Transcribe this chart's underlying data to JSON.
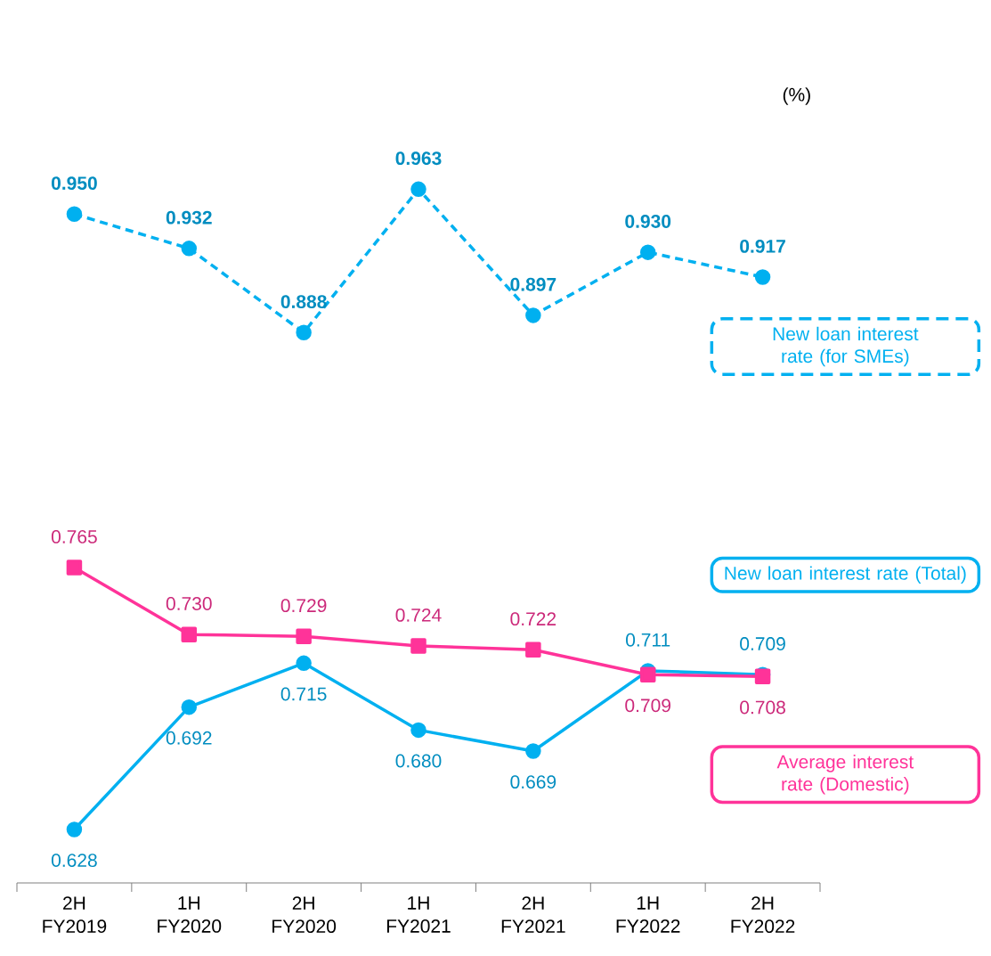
{
  "chart_data": {
    "type": "line",
    "ylabel": "(%)",
    "categories": [
      "2H FY2019",
      "1H FY2020",
      "2H FY2020",
      "1H FY2021",
      "2H FY2021",
      "1H FY2022",
      "2H FY2022"
    ],
    "series": [
      {
        "name": "New loan interest rate (for SMEs)",
        "color": "#00b0f0",
        "line_style": "dashed",
        "marker": "circle",
        "values": [
          0.95,
          0.932,
          0.888,
          0.963,
          0.897,
          0.93,
          0.917
        ],
        "value_labels": [
          "0.950",
          "0.932",
          "0.888",
          "0.963",
          "0.897",
          "0.930",
          "0.917"
        ]
      },
      {
        "name": "New loan interest rate (Total)",
        "color": "#00b0f0",
        "line_style": "solid",
        "marker": "circle",
        "values": [
          0.628,
          0.692,
          0.715,
          0.68,
          0.669,
          0.711,
          0.709
        ],
        "value_labels": [
          "0.628",
          "0.692",
          "0.715",
          "0.680",
          "0.669",
          "0.711",
          "0.709"
        ]
      },
      {
        "name": "Average interest rate (Domestic)",
        "color": "#ff3399",
        "line_style": "solid",
        "marker": "square",
        "values": [
          0.765,
          0.73,
          0.729,
          0.724,
          0.722,
          0.709,
          0.708
        ],
        "value_labels": [
          "0.765",
          "0.730",
          "0.729",
          "0.724",
          "0.722",
          "0.709",
          "0.708"
        ]
      }
    ]
  }
}
